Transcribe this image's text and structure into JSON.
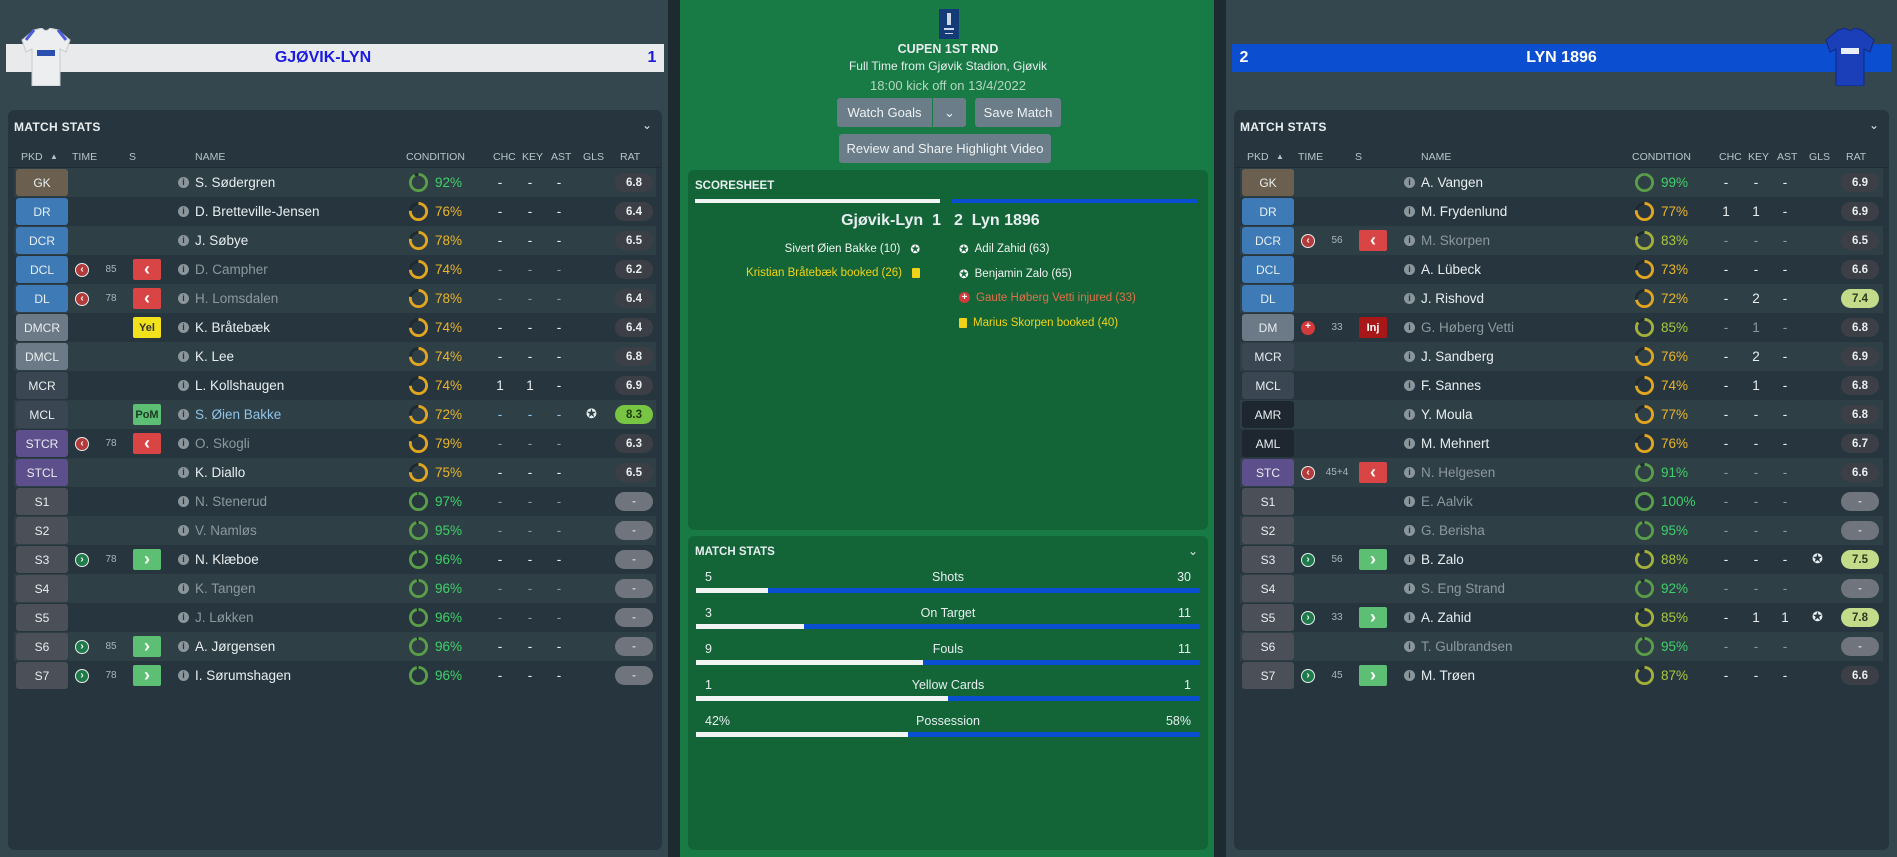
{
  "home": {
    "name": "GJØVIK-LYN",
    "score": "1",
    "bar_color": "#e8eaec",
    "text_color": "#1a1ae0"
  },
  "away": {
    "name": "LYN 1896",
    "score": "2",
    "bar_color": "#0b4fd0",
    "text_color": "#ffffff"
  },
  "panel_title": "MATCH STATS",
  "headers": {
    "pkd": "PKD",
    "time": "TIME",
    "s": "S",
    "name": "NAME",
    "condition": "CONDITION",
    "chc": "CHC",
    "key": "KEY",
    "ast": "AST",
    "gls": "GLS",
    "rat": "RAT"
  },
  "home_players": [
    {
      "pos": "GK",
      "pt": "gk",
      "name": "S. Sødergren",
      "cond": "92%",
      "c1": "-",
      "c2": "-",
      "c3": "-",
      "rat": "6.8"
    },
    {
      "pos": "DR",
      "pt": "def",
      "name": "D. Bretteville-Jensen",
      "cond": "76%",
      "c1": "-",
      "c2": "-",
      "c3": "-",
      "rat": "6.4"
    },
    {
      "pos": "DCR",
      "pt": "def",
      "name": "J. Søbye",
      "cond": "78%",
      "c1": "-",
      "c2": "-",
      "c3": "-",
      "rat": "6.5"
    },
    {
      "pos": "DCL",
      "pt": "def",
      "time": "85",
      "sub": "off",
      "dim": true,
      "name": "D. Campher",
      "cond": "74%",
      "c1": "-",
      "c2": "-",
      "c3": "-",
      "rat": "6.2"
    },
    {
      "pos": "DL",
      "pt": "def",
      "time": "78",
      "sub": "off",
      "dim": true,
      "name": "H. Lomsdalen",
      "cond": "78%",
      "c1": "-",
      "c2": "-",
      "c3": "-",
      "rat": "6.4"
    },
    {
      "pos": "DMCR",
      "pt": "dm",
      "sub": "yel",
      "sub_label": "Yel",
      "name": "K. Bråtebæk",
      "cond": "74%",
      "c1": "-",
      "c2": "-",
      "c3": "-",
      "rat": "6.4"
    },
    {
      "pos": "DMCL",
      "pt": "dm",
      "name": "K. Lee",
      "cond": "74%",
      "c1": "-",
      "c2": "-",
      "c3": "-",
      "rat": "6.8"
    },
    {
      "pos": "MCR",
      "pt": "mid",
      "name": "L. Kollshaugen",
      "cond": "74%",
      "c1": "1",
      "c2": "1",
      "c3": "-",
      "rat": "6.9"
    },
    {
      "pos": "MCL",
      "pt": "mid",
      "sub": "pom",
      "sub_label": "PoM",
      "hl": true,
      "name": "S. Øien Bakke",
      "cond": "72%",
      "c1": "-",
      "c2": "-",
      "c3": "-",
      "goal": true,
      "rat": "8.3",
      "rs": "top"
    },
    {
      "pos": "STCR",
      "pt": "st",
      "time": "78",
      "sub": "off",
      "dim": true,
      "name": "O. Skogli",
      "cond": "79%",
      "c1": "-",
      "c2": "-",
      "c3": "-",
      "rat": "6.3"
    },
    {
      "pos": "STCL",
      "pt": "st",
      "name": "K. Diallo",
      "cond": "75%",
      "c1": "-",
      "c2": "-",
      "c3": "-",
      "rat": "6.5"
    },
    {
      "pos": "S1",
      "pt": "sub",
      "dim": true,
      "name": "N. Stenerud",
      "cond": "97%",
      "c1": "-",
      "c2": "-",
      "c3": "-",
      "rat": "-"
    },
    {
      "pos": "S2",
      "pt": "sub",
      "dim": true,
      "name": "V. Namløs",
      "cond": "95%",
      "c1": "-",
      "c2": "-",
      "c3": "-",
      "rat": "-"
    },
    {
      "pos": "S3",
      "pt": "sub",
      "time": "78",
      "sub": "on",
      "name": "N. Klæboe",
      "cond": "96%",
      "c1": "-",
      "c2": "-",
      "c3": "-",
      "rat": "-"
    },
    {
      "pos": "S4",
      "pt": "sub",
      "dim": true,
      "name": "K. Tangen",
      "cond": "96%",
      "c1": "-",
      "c2": "-",
      "c3": "-",
      "rat": "-"
    },
    {
      "pos": "S5",
      "pt": "sub",
      "dim": true,
      "name": "J. Løkken",
      "cond": "96%",
      "c1": "-",
      "c2": "-",
      "c3": "-",
      "rat": "-"
    },
    {
      "pos": "S6",
      "pt": "sub",
      "time": "85",
      "sub": "on",
      "name": "A. Jørgensen",
      "cond": "96%",
      "c1": "-",
      "c2": "-",
      "c3": "-",
      "rat": "-"
    },
    {
      "pos": "S7",
      "pt": "sub",
      "time": "78",
      "sub": "on",
      "name": "I. Sørumshagen",
      "cond": "96%",
      "c1": "-",
      "c2": "-",
      "c3": "-",
      "rat": "-"
    }
  ],
  "away_players": [
    {
      "pos": "GK",
      "pt": "gk",
      "name": "A. Vangen",
      "cond": "99%",
      "c1": "-",
      "c2": "-",
      "c3": "-",
      "rat": "6.9"
    },
    {
      "pos": "DR",
      "pt": "def",
      "name": "M. Frydenlund",
      "cond": "77%",
      "c1": "1",
      "c2": "1",
      "c3": "-",
      "rat": "6.9"
    },
    {
      "pos": "DCR",
      "pt": "def",
      "time": "56",
      "sub": "off",
      "dim": true,
      "name": "M. Skorpen",
      "cond": "83%",
      "c1": "-",
      "c2": "-",
      "c3": "-",
      "rat": "6.5"
    },
    {
      "pos": "DCL",
      "pt": "def",
      "name": "A. Lübeck",
      "cond": "73%",
      "c1": "-",
      "c2": "-",
      "c3": "-",
      "rat": "6.6"
    },
    {
      "pos": "DL",
      "pt": "def",
      "name": "J. Rishovd",
      "cond": "72%",
      "c1": "-",
      "c2": "2",
      "c3": "-",
      "rat": "7.4",
      "rs": "good"
    },
    {
      "pos": "DM",
      "pt": "dm",
      "time": "33",
      "sub": "inj",
      "sub_label": "Inj",
      "dim": true,
      "name": "G. Høberg Vetti",
      "cond": "85%",
      "c1": "-",
      "c2": "1",
      "c3": "-",
      "rat": "6.8"
    },
    {
      "pos": "MCR",
      "pt": "mid",
      "name": "J. Sandberg",
      "cond": "76%",
      "c1": "-",
      "c2": "2",
      "c3": "-",
      "rat": "6.9"
    },
    {
      "pos": "MCL",
      "pt": "mid",
      "name": "F. Sannes",
      "cond": "74%",
      "c1": "-",
      "c2": "1",
      "c3": "-",
      "rat": "6.8"
    },
    {
      "pos": "AMR",
      "pt": "am",
      "name": "Y. Moula",
      "cond": "77%",
      "c1": "-",
      "c2": "-",
      "c3": "-",
      "rat": "6.8"
    },
    {
      "pos": "AML",
      "pt": "am",
      "name": "M. Mehnert",
      "cond": "76%",
      "c1": "-",
      "c2": "-",
      "c3": "-",
      "rat": "6.7"
    },
    {
      "pos": "STC",
      "pt": "st",
      "time": "45+4",
      "sub": "off",
      "dim": true,
      "name": "N. Helgesen",
      "cond": "91%",
      "c1": "-",
      "c2": "-",
      "c3": "-",
      "rat": "6.6"
    },
    {
      "pos": "S1",
      "pt": "sub",
      "dim": true,
      "name": "E. Aalvik",
      "cond": "100%",
      "c1": "-",
      "c2": "-",
      "c3": "-",
      "rat": "-"
    },
    {
      "pos": "S2",
      "pt": "sub",
      "dim": true,
      "name": "G. Berisha",
      "cond": "95%",
      "c1": "-",
      "c2": "-",
      "c3": "-",
      "rat": "-"
    },
    {
      "pos": "S3",
      "pt": "sub",
      "time": "56",
      "sub": "on",
      "name": "B. Zalo",
      "cond": "88%",
      "c1": "-",
      "c2": "-",
      "c3": "-",
      "goal": true,
      "rat": "7.5",
      "rs": "good"
    },
    {
      "pos": "S4",
      "pt": "sub",
      "dim": true,
      "name": "S. Eng Strand",
      "cond": "92%",
      "c1": "-",
      "c2": "-",
      "c3": "-",
      "rat": "-"
    },
    {
      "pos": "S5",
      "pt": "sub",
      "time": "33",
      "sub": "on",
      "name": "A. Zahid",
      "cond": "85%",
      "c1": "-",
      "c2": "1",
      "c3": "1",
      "goal": true,
      "rat": "7.8",
      "rs": "good"
    },
    {
      "pos": "S6",
      "pt": "sub",
      "dim": true,
      "name": "T. Gulbrandsen",
      "cond": "95%",
      "c1": "-",
      "c2": "-",
      "c3": "-",
      "rat": "-"
    },
    {
      "pos": "S7",
      "pt": "sub",
      "time": "45",
      "sub": "on",
      "name": "M. Trøen",
      "cond": "87%",
      "c1": "-",
      "c2": "-",
      "c3": "-",
      "rat": "6.6"
    }
  ],
  "match": {
    "competition": "CUPEN 1ST RND",
    "venue": "Full Time from Gjøvik Stadion, Gjøvik",
    "kickoff": "18:00 kick off on 13/4/2022",
    "watch_goals": "Watch Goals",
    "save_match": "Save Match",
    "highlight": "Review and Share Highlight Video"
  },
  "scoresheet": {
    "title": "SCORESHEET",
    "home": "Gjøvik-Lyn",
    "home_score": "1",
    "away_score": "2",
    "away": "Lyn 1896",
    "home_events": [
      {
        "text": "Sivert Øien Bakke (10)",
        "type": "goal"
      },
      {
        "text": "Kristian Bråtebæk booked (26)",
        "type": "yellow"
      }
    ],
    "away_events": [
      {
        "text": "Adil Zahid (63)",
        "type": "goal"
      },
      {
        "text": "Benjamin Zalo (65)",
        "type": "goal"
      },
      {
        "text": "Gaute Høberg Vetti injured (33)",
        "type": "injury"
      },
      {
        "text": "Marius Skorpen booked (40)",
        "type": "yellow"
      }
    ]
  },
  "match_stats": {
    "title": "MATCH STATS",
    "stats": [
      {
        "label": "Shots",
        "home": "5",
        "away": "30",
        "home_share": 0.143
      },
      {
        "label": "On Target",
        "home": "3",
        "away": "11",
        "home_share": 0.214
      },
      {
        "label": "Fouls",
        "home": "9",
        "away": "11",
        "home_share": 0.45
      },
      {
        "label": "Yellow Cards",
        "home": "1",
        "away": "1",
        "home_share": 0.5
      },
      {
        "label": "Possession",
        "home": "42%",
        "away": "58%",
        "home_share": 0.42
      }
    ]
  },
  "colors": {
    "pos": {
      "gk": "#6b604f",
      "def": "#3e7bb6",
      "dm": "#6c7986",
      "mid": "#3a4651",
      "am": "#1e2630",
      "st": "#5d4e8c",
      "sub": "#4b5058"
    }
  }
}
